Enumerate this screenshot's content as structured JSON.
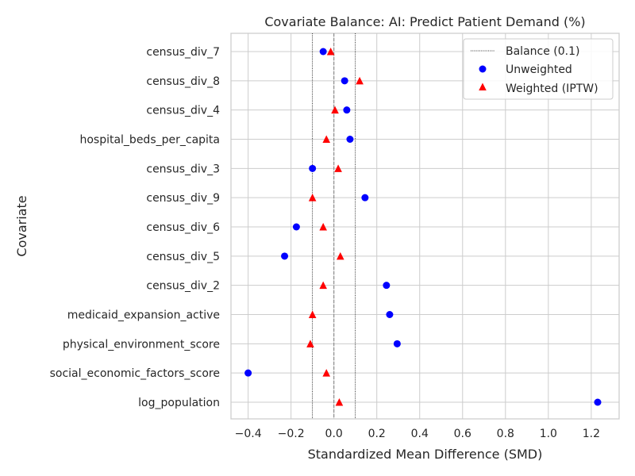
{
  "chart_data": {
    "type": "scatter",
    "title": "Covariate Balance: AI: Predict Patient Demand (%)",
    "xlabel": "Standardized Mean Difference (SMD)",
    "ylabel": "Covariate",
    "xlim": [
      -0.48,
      1.33
    ],
    "x_ticks": [
      -0.4,
      -0.2,
      0.0,
      0.2,
      0.4,
      0.6,
      0.8,
      1.0,
      1.2
    ],
    "x_tick_labels": [
      "−0.4",
      "−0.2",
      "0.0",
      "0.2",
      "0.4",
      "0.6",
      "0.8",
      "1.0",
      "1.2"
    ],
    "categories": [
      "census_div_7",
      "census_div_8",
      "census_div_4",
      "hospital_beds_per_capita",
      "census_div_3",
      "census_div_9",
      "census_div_6",
      "census_div_5",
      "census_div_2",
      "medicaid_expansion_active",
      "physical_environment_score",
      "social_economic_factors_score",
      "log_population"
    ],
    "series": [
      {
        "name": "Unweighted",
        "marker": "circle",
        "color": "#0000ff",
        "values": [
          -0.05,
          0.05,
          0.06,
          0.075,
          -0.1,
          0.145,
          -0.175,
          -0.23,
          0.245,
          0.26,
          0.295,
          -0.4,
          1.23
        ]
      },
      {
        "name": "Weighted (IPTW)",
        "marker": "triangle",
        "color": "#ff0000",
        "values": [
          -0.015,
          0.12,
          0.005,
          -0.035,
          0.02,
          -0.1,
          -0.05,
          0.03,
          -0.05,
          -0.1,
          -0.11,
          -0.035,
          0.025
        ]
      }
    ],
    "reference_lines": [
      {
        "name": "Balance (0.1)",
        "style": "dotted",
        "color": "#000000",
        "x": [
          -0.1,
          0.1
        ]
      },
      {
        "style": "dashed",
        "color": "#808080",
        "x": [
          0.0
        ]
      }
    ],
    "grid": true,
    "legend_position": "top-right"
  }
}
